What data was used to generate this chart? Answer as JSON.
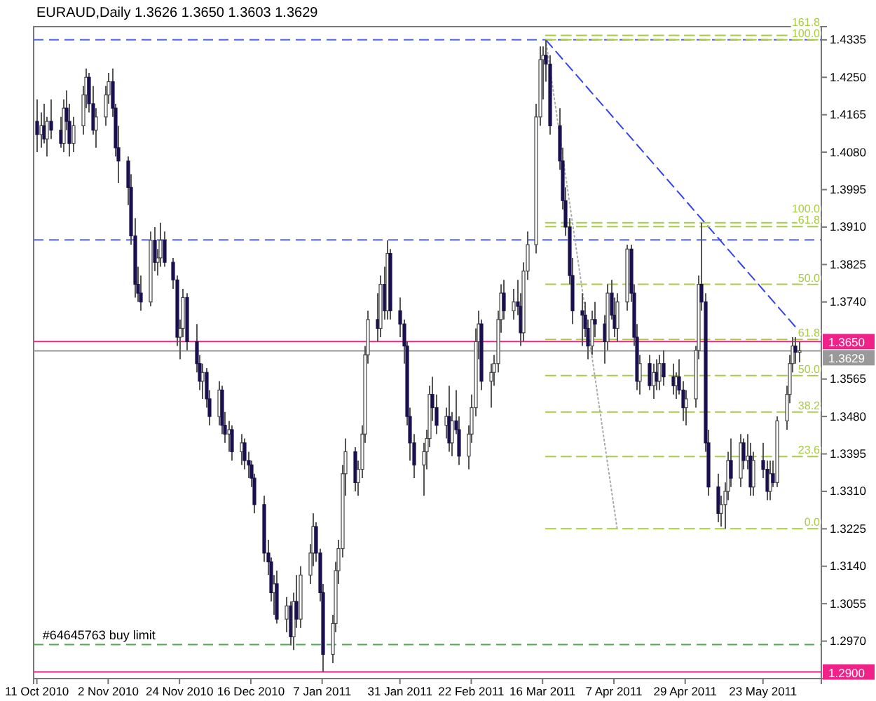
{
  "chart_data": {
    "type": "candlestick",
    "title": "EURAUD,Daily  1.3626 1.3650 1.3603 1.3629",
    "x": [
      "2010-10-11",
      "2010-10-12",
      "2010-10-13",
      "2010-10-14",
      "2010-10-15",
      "2010-10-18",
      "2010-10-19",
      "2010-10-20",
      "2010-10-21",
      "2010-10-22",
      "2010-10-25",
      "2010-10-26",
      "2010-10-27",
      "2010-10-28",
      "2010-10-29",
      "2010-11-01",
      "2010-11-02",
      "2010-11-03",
      "2010-11-04",
      "2010-11-05",
      "2010-11-08",
      "2010-11-09",
      "2010-11-10",
      "2010-11-11",
      "2010-11-12",
      "2010-11-15",
      "2010-11-16",
      "2010-11-17",
      "2010-11-18",
      "2010-11-19",
      "2010-11-22",
      "2010-11-23",
      "2010-11-24",
      "2010-11-25",
      "2010-11-26",
      "2010-11-29",
      "2010-11-30",
      "2010-12-01",
      "2010-12-02",
      "2010-12-03",
      "2010-12-06",
      "2010-12-07",
      "2010-12-08",
      "2010-12-09",
      "2010-12-10",
      "2010-12-13",
      "2010-12-14",
      "2010-12-15",
      "2010-12-16",
      "2010-12-17",
      "2010-12-20",
      "2010-12-21",
      "2010-12-22",
      "2010-12-23",
      "2010-12-24",
      "2010-12-27",
      "2010-12-28",
      "2010-12-29",
      "2010-12-30",
      "2010-12-31",
      "2011-01-03",
      "2011-01-04",
      "2011-01-05",
      "2011-01-06",
      "2011-01-07",
      "2011-01-10",
      "2011-01-11",
      "2011-01-12",
      "2011-01-13",
      "2011-01-14",
      "2011-01-17",
      "2011-01-18",
      "2011-01-19",
      "2011-01-20",
      "2011-01-21",
      "2011-01-24",
      "2011-01-25",
      "2011-01-26",
      "2011-01-27",
      "2011-01-28",
      "2011-01-31",
      "2011-02-01",
      "2011-02-02",
      "2011-02-03",
      "2011-02-04",
      "2011-02-07",
      "2011-02-08",
      "2011-02-09",
      "2011-02-10",
      "2011-02-11",
      "2011-02-14",
      "2011-02-15",
      "2011-02-16",
      "2011-02-17",
      "2011-02-18",
      "2011-02-21",
      "2011-02-22",
      "2011-02-23",
      "2011-02-24",
      "2011-02-25",
      "2011-02-28",
      "2011-03-01",
      "2011-03-02",
      "2011-03-03",
      "2011-03-04",
      "2011-03-07",
      "2011-03-08",
      "2011-03-09",
      "2011-03-10",
      "2011-03-11",
      "2011-03-14",
      "2011-03-15",
      "2011-03-16",
      "2011-03-17",
      "2011-03-18",
      "2011-03-21",
      "2011-03-22",
      "2011-03-23",
      "2011-03-24",
      "2011-03-25",
      "2011-03-28",
      "2011-03-29",
      "2011-03-30",
      "2011-03-31",
      "2011-04-01",
      "2011-04-04",
      "2011-04-05",
      "2011-04-06",
      "2011-04-07",
      "2011-04-08",
      "2011-04-11",
      "2011-04-12",
      "2011-04-13",
      "2011-04-14",
      "2011-04-15",
      "2011-04-18",
      "2011-04-19",
      "2011-04-20",
      "2011-04-21",
      "2011-04-22",
      "2011-04-25",
      "2011-04-26",
      "2011-04-27",
      "2011-04-28",
      "2011-04-29",
      "2011-05-02",
      "2011-05-03",
      "2011-05-04",
      "2011-05-05",
      "2011-05-06",
      "2011-05-09",
      "2011-05-10",
      "2011-05-11",
      "2011-05-12",
      "2011-05-13",
      "2011-05-16",
      "2011-05-17",
      "2011-05-18",
      "2011-05-19",
      "2011-05-20",
      "2011-05-23",
      "2011-05-24",
      "2011-05-25",
      "2011-05-26",
      "2011-05-27",
      "2011-05-30",
      "2011-05-31",
      "2011-06-01",
      "2011-06-02",
      "2011-06-03"
    ],
    "ohlc": [
      [
        1.415,
        1.42,
        1.408,
        1.412
      ],
      [
        1.412,
        1.417,
        1.409,
        1.414
      ],
      [
        1.414,
        1.419,
        1.41,
        1.411
      ],
      [
        1.411,
        1.416,
        1.407,
        1.415
      ],
      [
        1.415,
        1.42,
        1.411,
        1.413
      ],
      [
        1.413,
        1.416,
        1.409,
        1.41
      ],
      [
        1.41,
        1.42,
        1.408,
        1.418
      ],
      [
        1.418,
        1.422,
        1.413,
        1.415
      ],
      [
        1.415,
        1.419,
        1.407,
        1.41
      ],
      [
        1.41,
        1.416,
        1.408,
        1.414
      ],
      [
        1.414,
        1.423,
        1.412,
        1.421
      ],
      [
        1.421,
        1.427,
        1.418,
        1.425
      ],
      [
        1.425,
        1.426,
        1.417,
        1.419
      ],
      [
        1.419,
        1.423,
        1.412,
        1.413
      ],
      [
        1.413,
        1.418,
        1.409,
        1.416
      ],
      [
        1.416,
        1.423,
        1.414,
        1.421
      ],
      [
        1.421,
        1.426,
        1.419,
        1.424
      ],
      [
        1.424,
        1.427,
        1.416,
        1.418
      ],
      [
        1.418,
        1.419,
        1.407,
        1.409
      ],
      [
        1.409,
        1.414,
        1.401,
        1.406
      ],
      [
        1.406,
        1.407,
        1.396,
        1.4
      ],
      [
        1.4,
        1.403,
        1.387,
        1.389
      ],
      [
        1.389,
        1.393,
        1.375,
        1.378
      ],
      [
        1.378,
        1.382,
        1.374,
        1.376
      ],
      [
        1.376,
        1.38,
        1.372,
        1.374
      ],
      [
        1.374,
        1.39,
        1.373,
        1.388
      ],
      [
        1.388,
        1.391,
        1.381,
        1.383
      ],
      [
        1.383,
        1.386,
        1.38,
        1.384
      ],
      [
        1.384,
        1.392,
        1.382,
        1.388
      ],
      [
        1.388,
        1.39,
        1.382,
        1.383
      ],
      [
        1.383,
        1.384,
        1.377,
        1.379
      ],
      [
        1.379,
        1.38,
        1.364,
        1.366
      ],
      [
        1.366,
        1.37,
        1.361,
        1.368
      ],
      [
        1.368,
        1.377,
        1.366,
        1.375
      ],
      [
        1.375,
        1.376,
        1.363,
        1.365
      ],
      [
        1.365,
        1.369,
        1.358,
        1.36
      ],
      [
        1.36,
        1.362,
        1.354,
        1.356
      ],
      [
        1.356,
        1.36,
        1.352,
        1.358
      ],
      [
        1.358,
        1.359,
        1.35,
        1.352
      ],
      [
        1.352,
        1.354,
        1.346,
        1.348
      ],
      [
        1.348,
        1.356,
        1.346,
        1.354
      ],
      [
        1.354,
        1.355,
        1.344,
        1.346
      ],
      [
        1.346,
        1.349,
        1.342,
        1.344
      ],
      [
        1.344,
        1.347,
        1.34,
        1.345
      ],
      [
        1.345,
        1.346,
        1.338,
        1.34
      ],
      [
        1.34,
        1.344,
        1.337,
        1.342
      ],
      [
        1.342,
        1.343,
        1.336,
        1.338
      ],
      [
        1.338,
        1.34,
        1.334,
        1.337
      ],
      [
        1.337,
        1.338,
        1.332,
        1.334
      ],
      [
        1.334,
        1.335,
        1.326,
        1.328
      ],
      [
        1.328,
        1.33,
        1.315,
        1.317
      ],
      [
        1.317,
        1.32,
        1.312,
        1.315
      ],
      [
        1.315,
        1.316,
        1.306,
        1.308
      ],
      [
        1.308,
        1.312,
        1.303,
        1.31
      ],
      [
        1.31,
        1.313,
        1.301,
        1.302
      ],
      [
        1.302,
        1.307,
        1.299,
        1.305
      ],
      [
        1.305,
        1.306,
        1.296,
        1.298
      ],
      [
        1.298,
        1.308,
        1.295,
        1.306
      ],
      [
        1.306,
        1.312,
        1.3,
        1.302
      ],
      [
        1.302,
        1.314,
        1.3,
        1.312
      ],
      [
        1.312,
        1.319,
        1.31,
        1.317
      ],
      [
        1.317,
        1.326,
        1.314,
        1.323
      ],
      [
        1.323,
        1.324,
        1.315,
        1.317
      ],
      [
        1.317,
        1.318,
        1.306,
        1.308
      ],
      [
        1.308,
        1.31,
        1.29,
        1.294
      ],
      [
        1.294,
        1.303,
        1.292,
        1.301
      ],
      [
        1.301,
        1.315,
        1.299,
        1.313
      ],
      [
        1.313,
        1.32,
        1.31,
        1.318
      ],
      [
        1.318,
        1.337,
        1.316,
        1.335
      ],
      [
        1.335,
        1.343,
        1.33,
        1.34
      ],
      [
        1.34,
        1.341,
        1.331,
        1.333
      ],
      [
        1.333,
        1.338,
        1.33,
        1.336
      ],
      [
        1.336,
        1.346,
        1.334,
        1.344
      ],
      [
        1.344,
        1.364,
        1.342,
        1.362
      ],
      [
        1.362,
        1.372,
        1.36,
        1.37
      ],
      [
        1.37,
        1.376,
        1.365,
        1.368
      ],
      [
        1.368,
        1.38,
        1.366,
        1.378
      ],
      [
        1.378,
        1.382,
        1.37,
        1.372
      ],
      [
        1.372,
        1.388,
        1.37,
        1.385
      ],
      [
        1.385,
        1.386,
        1.37,
        1.372
      ],
      [
        1.372,
        1.375,
        1.366,
        1.369
      ],
      [
        1.369,
        1.37,
        1.36,
        1.364
      ],
      [
        1.364,
        1.365,
        1.346,
        1.348
      ],
      [
        1.348,
        1.35,
        1.338,
        1.342
      ],
      [
        1.342,
        1.344,
        1.334,
        1.337
      ],
      [
        1.337,
        1.342,
        1.33,
        1.34
      ],
      [
        1.34,
        1.345,
        1.336,
        1.343
      ],
      [
        1.343,
        1.355,
        1.341,
        1.353
      ],
      [
        1.353,
        1.357,
        1.347,
        1.35
      ],
      [
        1.35,
        1.353,
        1.344,
        1.346
      ],
      [
        1.346,
        1.35,
        1.343,
        1.348
      ],
      [
        1.348,
        1.355,
        1.34,
        1.342
      ],
      [
        1.342,
        1.349,
        1.339,
        1.347
      ],
      [
        1.347,
        1.354,
        1.344,
        1.345
      ],
      [
        1.345,
        1.348,
        1.337,
        1.339
      ],
      [
        1.339,
        1.346,
        1.336,
        1.344
      ],
      [
        1.344,
        1.353,
        1.342,
        1.35
      ],
      [
        1.35,
        1.368,
        1.348,
        1.365
      ],
      [
        1.365,
        1.372,
        1.361,
        1.369
      ],
      [
        1.369,
        1.37,
        1.354,
        1.356
      ],
      [
        1.356,
        1.36,
        1.35,
        1.358
      ],
      [
        1.358,
        1.362,
        1.355,
        1.36
      ],
      [
        1.36,
        1.372,
        1.358,
        1.37
      ],
      [
        1.37,
        1.378,
        1.367,
        1.376
      ],
      [
        1.376,
        1.379,
        1.37,
        1.372
      ],
      [
        1.372,
        1.377,
        1.37,
        1.374
      ],
      [
        1.374,
        1.379,
        1.371,
        1.373
      ],
      [
        1.373,
        1.376,
        1.364,
        1.367
      ],
      [
        1.367,
        1.383,
        1.365,
        1.381
      ],
      [
        1.381,
        1.39,
        1.379,
        1.387
      ],
      [
        1.387,
        1.419,
        1.385,
        1.416
      ],
      [
        1.416,
        1.432,
        1.414,
        1.429
      ],
      [
        1.429,
        1.432,
        1.42,
        1.43
      ],
      [
        1.43,
        1.4335,
        1.424,
        1.428
      ],
      [
        1.428,
        1.43,
        1.412,
        1.414
      ],
      [
        1.414,
        1.418,
        1.404,
        1.406
      ],
      [
        1.406,
        1.409,
        1.395,
        1.397
      ],
      [
        1.397,
        1.4,
        1.389,
        1.391
      ],
      [
        1.391,
        1.393,
        1.378,
        1.38
      ],
      [
        1.38,
        1.384,
        1.369,
        1.372
      ],
      [
        1.372,
        1.376,
        1.364,
        1.371
      ],
      [
        1.371,
        1.374,
        1.366,
        1.368
      ],
      [
        1.368,
        1.37,
        1.361,
        1.364
      ],
      [
        1.364,
        1.372,
        1.362,
        1.37
      ],
      [
        1.37,
        1.374,
        1.366,
        1.369
      ],
      [
        1.369,
        1.371,
        1.36,
        1.365
      ],
      [
        1.365,
        1.378,
        1.363,
        1.376
      ],
      [
        1.376,
        1.379,
        1.37,
        1.371
      ],
      [
        1.371,
        1.375,
        1.366,
        1.368
      ],
      [
        1.368,
        1.376,
        1.365,
        1.374
      ],
      [
        1.374,
        1.387,
        1.372,
        1.386
      ],
      [
        1.386,
        1.387,
        1.374,
        1.376
      ],
      [
        1.376,
        1.378,
        1.364,
        1.366
      ],
      [
        1.366,
        1.369,
        1.354,
        1.356
      ],
      [
        1.356,
        1.362,
        1.353,
        1.36
      ],
      [
        1.36,
        1.362,
        1.354,
        1.355
      ],
      [
        1.355,
        1.36,
        1.352,
        1.358
      ],
      [
        1.358,
        1.361,
        1.354,
        1.356
      ],
      [
        1.356,
        1.362,
        1.354,
        1.36
      ],
      [
        1.36,
        1.363,
        1.355,
        1.357
      ],
      [
        1.357,
        1.36,
        1.353,
        1.355
      ],
      [
        1.355,
        1.358,
        1.352,
        1.357
      ],
      [
        1.357,
        1.361,
        1.353,
        1.354
      ],
      [
        1.354,
        1.356,
        1.347,
        1.35
      ],
      [
        1.35,
        1.354,
        1.346,
        1.352
      ],
      [
        1.352,
        1.364,
        1.35,
        1.363
      ],
      [
        1.363,
        1.38,
        1.361,
        1.378
      ],
      [
        1.378,
        1.392,
        1.372,
        1.374
      ],
      [
        1.374,
        1.376,
        1.34,
        1.342
      ],
      [
        1.342,
        1.345,
        1.33,
        1.332
      ],
      [
        1.332,
        1.335,
        1.324,
        1.326
      ],
      [
        1.326,
        1.33,
        1.323,
        1.328
      ],
      [
        1.328,
        1.333,
        1.3225,
        1.331
      ],
      [
        1.331,
        1.34,
        1.329,
        1.338
      ],
      [
        1.338,
        1.343,
        1.332,
        1.334
      ],
      [
        1.334,
        1.344,
        1.332,
        1.342
      ],
      [
        1.342,
        1.343,
        1.336,
        1.338
      ],
      [
        1.338,
        1.344,
        1.336,
        1.339
      ],
      [
        1.339,
        1.342,
        1.33,
        1.332
      ],
      [
        1.332,
        1.34,
        1.33,
        1.338
      ],
      [
        1.338,
        1.342,
        1.334,
        1.336
      ],
      [
        1.336,
        1.338,
        1.329,
        1.331
      ],
      [
        1.331,
        1.338,
        1.329,
        1.335
      ],
      [
        1.335,
        1.338,
        1.332,
        1.333
      ],
      [
        1.333,
        1.348,
        1.332,
        1.347
      ],
      [
        1.347,
        1.355,
        1.345,
        1.353
      ],
      [
        1.353,
        1.362,
        1.351,
        1.36
      ],
      [
        1.36,
        1.366,
        1.358,
        1.364
      ],
      [
        1.364,
        1.366,
        1.36,
        1.3626
      ],
      [
        1.3626,
        1.365,
        1.3603,
        1.3629
      ]
    ],
    "series": [
      {
        "type": "line",
        "x": [
          "2011-03-17",
          "2011-06-03"
        ],
        "values": [
          1.4335,
          1.3675
        ],
        "color": "#3344ee",
        "line_style": "dashed"
      },
      {
        "type": "line",
        "x": [
          "2011-03-17",
          "2011-04-08"
        ],
        "values": [
          1.4335,
          1.3225
        ],
        "color": "#aaaaaa",
        "line_style": "dotted"
      },
      {
        "type": "line",
        "name": "161.8",
        "x": [
          "2011-03-17",
          "2011-06-10"
        ],
        "values": [
          1.4345,
          1.4345
        ],
        "color": "#a8cc44",
        "line_style": "dashed"
      },
      {
        "type": "line",
        "name": "100.0",
        "x": [
          "2011-03-17",
          "2011-06-10"
        ],
        "values": [
          1.4335,
          1.4335
        ],
        "color": "#a8cc44",
        "line_style": "dashed"
      },
      {
        "type": "line",
        "name": "100.0",
        "x": [
          "2011-03-17",
          "2011-06-10"
        ],
        "values": [
          1.392,
          1.392
        ],
        "color": "#a8cc44",
        "line_style": "dashed"
      },
      {
        "type": "line",
        "name": "61.8",
        "x": [
          "2011-03-17",
          "2011-06-10"
        ],
        "values": [
          1.3911,
          1.3911
        ],
        "color": "#a8cc44",
        "line_style": "dashed"
      },
      {
        "type": "line",
        "name": "50.0",
        "x": [
          "2011-03-17",
          "2011-06-10"
        ],
        "values": [
          1.378,
          1.378
        ],
        "color": "#a8cc44",
        "line_style": "dashed"
      },
      {
        "type": "line",
        "name": "61.8",
        "x": [
          "2011-03-17",
          "2011-06-10"
        ],
        "values": [
          1.3655,
          1.3655
        ],
        "color": "#a8cc44",
        "line_style": "dashed"
      },
      {
        "type": "line",
        "name": "50.0",
        "x": [
          "2011-03-17",
          "2011-06-10"
        ],
        "values": [
          1.3573,
          1.3573
        ],
        "color": "#a8cc44",
        "line_style": "dashed"
      },
      {
        "type": "line",
        "name": "38.2",
        "x": [
          "2011-03-17",
          "2011-06-10"
        ],
        "values": [
          1.349,
          1.349
        ],
        "color": "#a8cc44",
        "line_style": "dashed"
      },
      {
        "type": "line",
        "name": "23.6",
        "x": [
          "2011-03-17",
          "2011-06-10"
        ],
        "values": [
          1.3389,
          1.3389
        ],
        "color": "#a8cc44",
        "line_style": "dashed"
      },
      {
        "type": "line",
        "name": "0.0",
        "x": [
          "2011-03-17",
          "2011-06-10"
        ],
        "values": [
          1.3225,
          1.3225
        ],
        "color": "#a8cc44",
        "line_style": "dashed"
      }
    ],
    "ref_lines": [
      {
        "axis": "y",
        "value": 1.4335,
        "color": "#5566ee",
        "line_style": "dashed"
      },
      {
        "axis": "y",
        "value": 1.3881,
        "color": "#5566ee",
        "line_style": "dashed"
      },
      {
        "axis": "y",
        "value": 1.365,
        "label": "1.3650",
        "color": "#ee2288"
      },
      {
        "axis": "y",
        "value": 1.3629,
        "label": "1.3629",
        "color": "#999999"
      },
      {
        "axis": "y",
        "value": 1.2962,
        "color": "#55aa55",
        "line_style": "dashed"
      },
      {
        "axis": "y",
        "value": 1.29,
        "label": "1.2900",
        "color": "#ee2288"
      }
    ],
    "annotations": [
      {
        "text": "#64645763 buy limit",
        "x": "2010-10-11",
        "y": 1.2962
      }
    ],
    "xlim": [
      "2010-10-10",
      "2011-06-10"
    ],
    "xticks": [
      {
        "value": "2010-10-11",
        "label": "11 Oct 2010"
      },
      {
        "value": "2010-11-02",
        "label": "2 Nov 2010"
      },
      {
        "value": "2010-11-24",
        "label": "24 Nov 2010"
      },
      {
        "value": "2010-12-16",
        "label": "16 Dec 2010"
      },
      {
        "value": "2011-01-07",
        "label": "7 Jan 2011"
      },
      {
        "value": "2011-01-31",
        "label": "31 Jan 2011"
      },
      {
        "value": "2011-02-22",
        "label": "22 Feb 2011"
      },
      {
        "value": "2011-03-16",
        "label": "16 Mar 2011"
      },
      {
        "value": "2011-04-07",
        "label": "7 Apr 2011"
      },
      {
        "value": "2011-04-29",
        "label": "29 Apr 2011"
      },
      {
        "value": "2011-05-23",
        "label": "23 May 2011"
      }
    ],
    "ylim": [
      1.2885,
      1.4365
    ],
    "yticks": [
      {
        "value": 1.4335,
        "label": "1.4335"
      },
      {
        "value": 1.425,
        "label": "1.4250"
      },
      {
        "value": 1.4165,
        "label": "1.4165"
      },
      {
        "value": 1.408,
        "label": "1.4080"
      },
      {
        "value": 1.3995,
        "label": "1.3995"
      },
      {
        "value": 1.391,
        "label": "1.3910"
      },
      {
        "value": 1.3825,
        "label": "1.3825"
      },
      {
        "value": 1.374,
        "label": "1.3740"
      },
      {
        "value": 1.3565,
        "label": "1.3565"
      },
      {
        "value": 1.348,
        "label": "1.3480"
      },
      {
        "value": 1.3395,
        "label": "1.3395"
      },
      {
        "value": 1.331,
        "label": "1.3310"
      },
      {
        "value": 1.3225,
        "label": "1.3225"
      },
      {
        "value": 1.314,
        "label": "1.3140"
      },
      {
        "value": 1.3055,
        "label": "1.3055"
      },
      {
        "value": 1.297,
        "label": "1.2970"
      },
      {
        "value": 1.2885,
        "label": null
      }
    ]
  }
}
